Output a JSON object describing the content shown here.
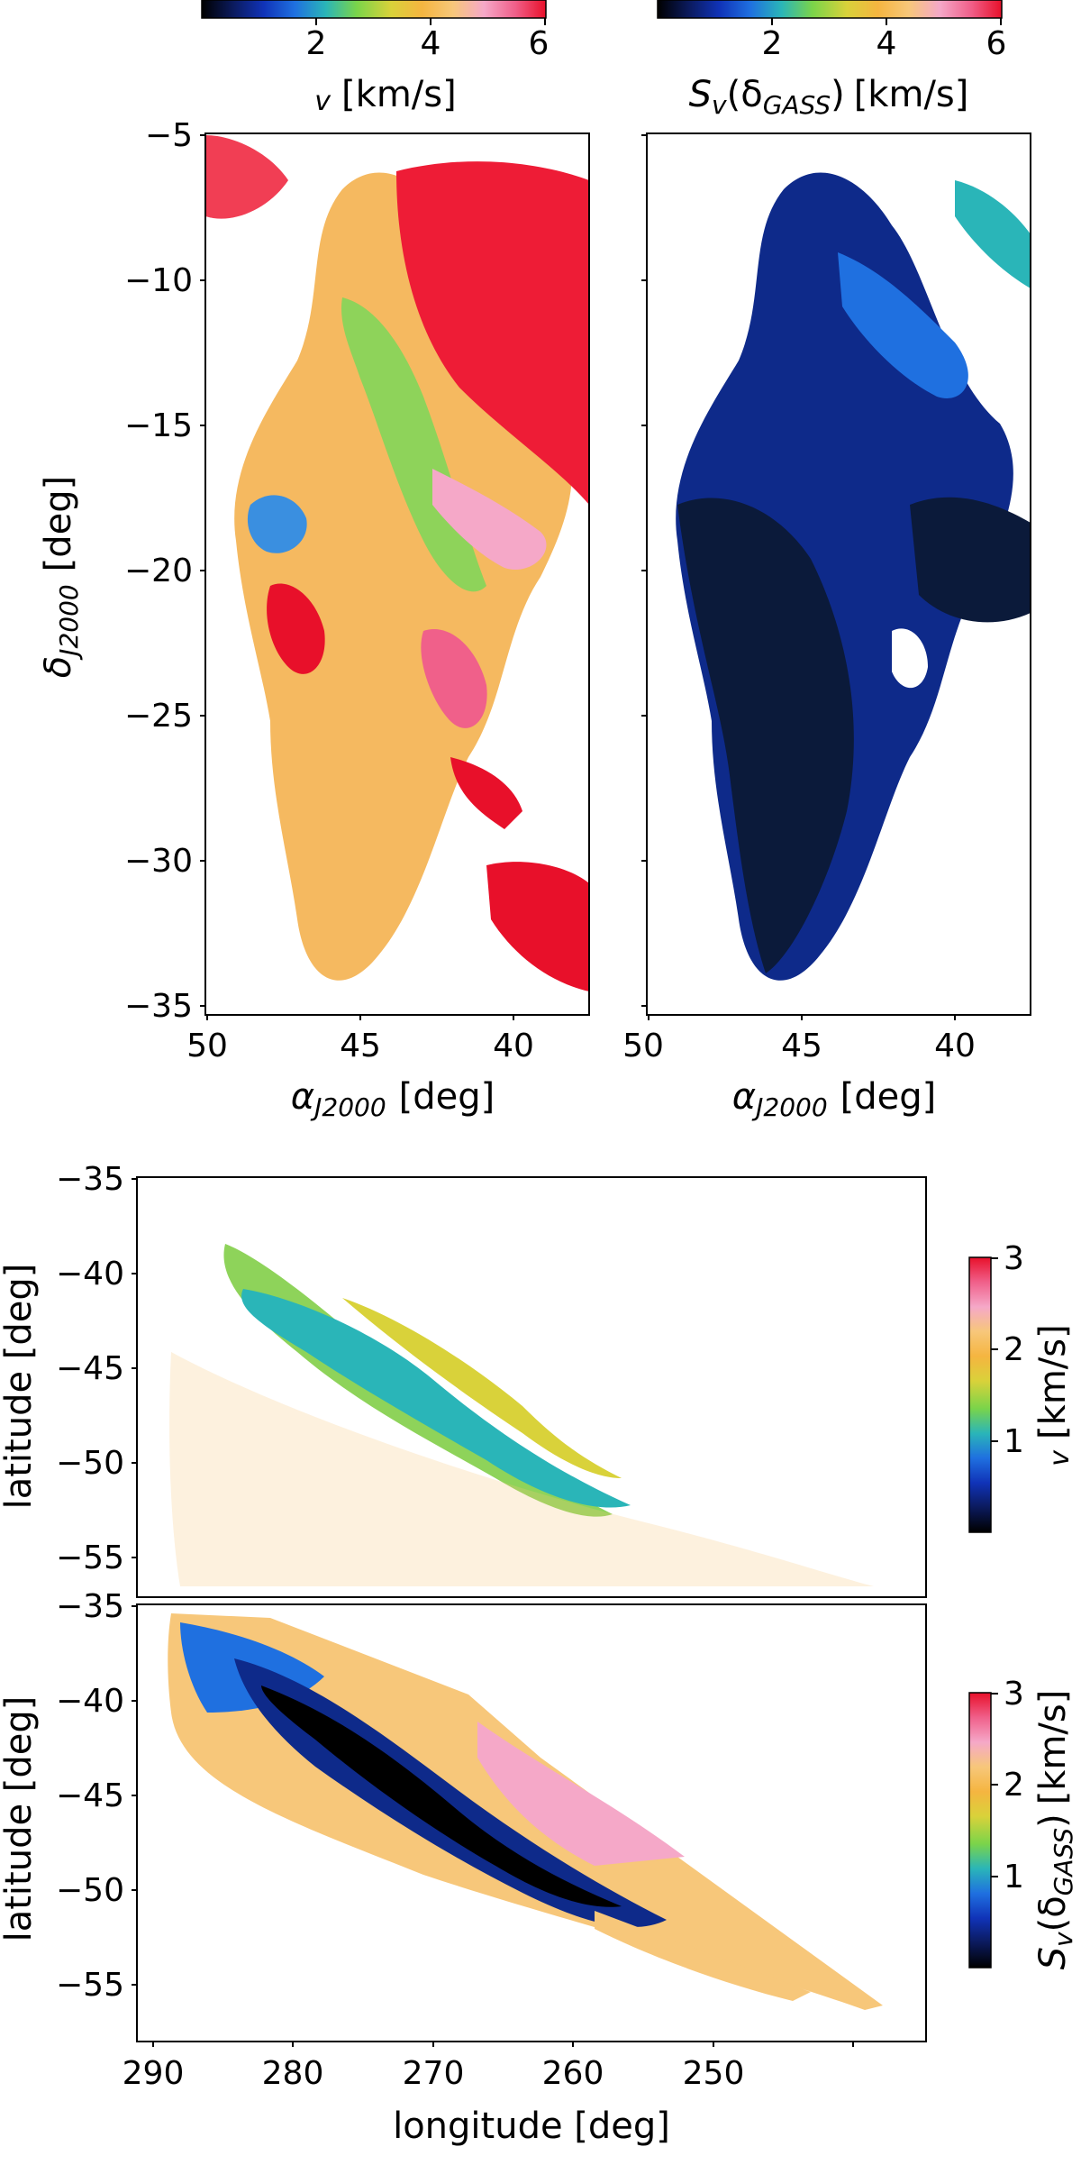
{
  "figure": {
    "colorbars": {
      "top_left": {
        "label_sym": "v",
        "label_unit": "[km/s]",
        "ticks": [
          "2",
          "4",
          "6"
        ]
      },
      "top_right": {
        "label_s": "S",
        "label_v": "v",
        "label_open": "(δ",
        "label_sub": "GASS",
        "label_close": ")",
        "label_unit": "[km/s]",
        "ticks": [
          "2",
          "4",
          "6"
        ]
      },
      "bottom_top": {
        "label_sym": "v",
        "label_unit": "[km/s]",
        "ticks": [
          "1",
          "2",
          "3"
        ]
      },
      "bottom_bottom": {
        "label_s": "S",
        "label_v": "v",
        "label_open": "(δ",
        "label_sub": "GASS",
        "label_close": ")",
        "label_unit": "[km/s]",
        "ticks": [
          "1",
          "2",
          "3"
        ]
      }
    },
    "colormap": [
      "#000000",
      "#0b1a5c",
      "#1033b8",
      "#1f70e0",
      "#2ab5b8",
      "#7ad44a",
      "#d9d23a",
      "#f5b540",
      "#f7c77a",
      "#f5a8c8",
      "#f0608a",
      "#e8102a"
    ]
  },
  "chart_data": [
    {
      "type": "heatmap",
      "panel": "top-left",
      "quantity": "v",
      "x_label": {
        "sym": "α",
        "sub": "J2000",
        "unit": "[deg]"
      },
      "y_label": {
        "sym": "δ",
        "sub": "J2000",
        "unit": "[deg]"
      },
      "x_range": [
        50,
        37.5
      ],
      "y_range": [
        -35,
        -5
      ],
      "x_ticks": [
        "50",
        "45",
        "40"
      ],
      "y_ticks": [
        "−5",
        "−10",
        "−15",
        "−20",
        "−25",
        "−30",
        "−35"
      ],
      "colorbar_range": [
        0,
        6
      ],
      "colorbar_ticks": [
        2,
        4,
        6
      ]
    },
    {
      "type": "heatmap",
      "panel": "top-right",
      "quantity": "S_v(δ_GASS)",
      "x_label": {
        "sym": "α",
        "sub": "J2000",
        "unit": "[deg]"
      },
      "x_range": [
        50,
        37.5
      ],
      "y_range": [
        -35,
        -5
      ],
      "x_ticks": [
        "50",
        "45",
        "40"
      ],
      "colorbar_range": [
        0,
        6
      ],
      "colorbar_ticks": [
        2,
        4,
        6
      ]
    },
    {
      "type": "heatmap",
      "panel": "bottom-upper",
      "quantity": "v",
      "y_label": "latitude [deg]",
      "x_range": [
        290,
        246
      ],
      "y_range": [
        -58,
        -35
      ],
      "y_ticks": [
        "−35",
        "−40",
        "−45",
        "−50",
        "−55"
      ],
      "colorbar_range": [
        0,
        3
      ],
      "colorbar_ticks": [
        1,
        2,
        3
      ]
    },
    {
      "type": "heatmap",
      "panel": "bottom-lower",
      "quantity": "S_v(δ_GASS)",
      "x_label": "longitude [deg]",
      "y_label": "latitude [deg]",
      "x_range": [
        290,
        246
      ],
      "y_range": [
        -58,
        -35
      ],
      "x_ticks": [
        "290",
        "280",
        "270",
        "260",
        "250"
      ],
      "y_ticks": [
        "−35",
        "−40",
        "−45",
        "−50",
        "−55"
      ],
      "colorbar_range": [
        0,
        3
      ],
      "colorbar_ticks": [
        1,
        2,
        3
      ]
    }
  ]
}
